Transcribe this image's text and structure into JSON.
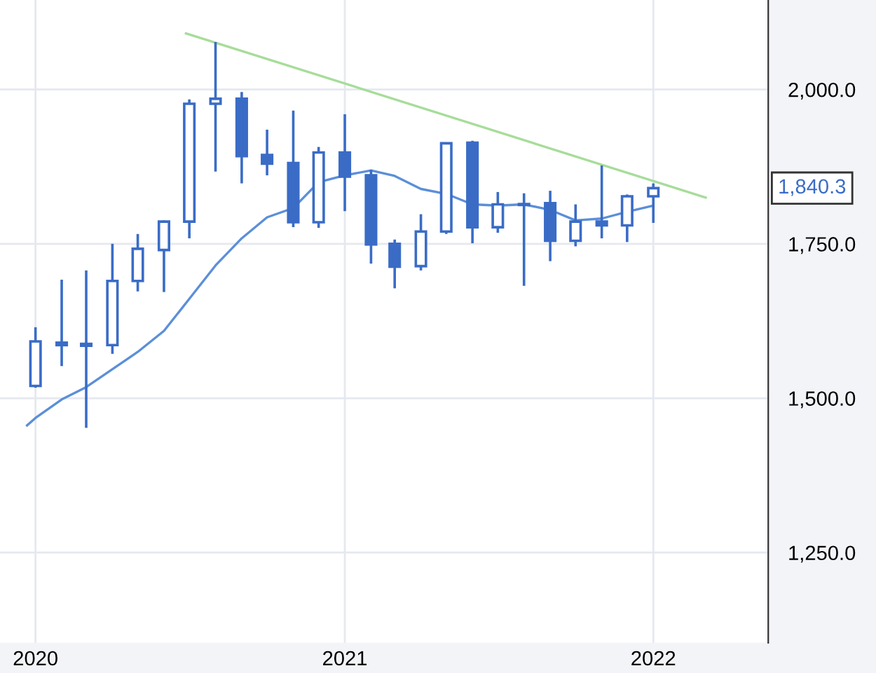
{
  "chart_data": {
    "type": "candlestick",
    "color": "#3a6cc6",
    "x": [
      "2020-01",
      "2020-02",
      "2020-03",
      "2020-04",
      "2020-05",
      "2020-06",
      "2020-07",
      "2020-08",
      "2020-09",
      "2020-10",
      "2020-11",
      "2020-12",
      "2021-01",
      "2021-02",
      "2021-03",
      "2021-04",
      "2021-05",
      "2021-06",
      "2021-07",
      "2021-08",
      "2021-09",
      "2021-10",
      "2021-11",
      "2021-12",
      "2022-01"
    ],
    "ohlc": [
      [
        1520,
        1615,
        1517,
        1592
      ],
      [
        1590,
        1692,
        1552,
        1586
      ],
      [
        1588,
        1707,
        1452,
        1585
      ],
      [
        1586,
        1750,
        1572,
        1690
      ],
      [
        1690,
        1766,
        1673,
        1742
      ],
      [
        1740,
        1788,
        1672,
        1786
      ],
      [
        1786,
        1984,
        1759,
        1977
      ],
      [
        1977,
        2077,
        1867,
        1985
      ],
      [
        1985,
        1996,
        1848,
        1892
      ],
      [
        1894,
        1935,
        1861,
        1880
      ],
      [
        1881,
        1966,
        1777,
        1785
      ],
      [
        1785,
        1907,
        1776,
        1898
      ],
      [
        1898,
        1960,
        1803,
        1859
      ],
      [
        1861,
        1870,
        1718,
        1749
      ],
      [
        1750,
        1757,
        1678,
        1713
      ],
      [
        1714,
        1798,
        1707,
        1770
      ],
      [
        1770,
        1914,
        1766,
        1913
      ],
      [
        1914,
        1917,
        1751,
        1777
      ],
      [
        1777,
        1834,
        1768,
        1814
      ],
      [
        1814,
        1832,
        1682,
        1813
      ],
      [
        1816,
        1836,
        1722,
        1755
      ],
      [
        1755,
        1814,
        1746,
        1786
      ],
      [
        1786,
        1877,
        1759,
        1780
      ],
      [
        1780,
        1830,
        1753,
        1827
      ],
      [
        1827,
        1848,
        1784,
        1840.3
      ]
    ],
    "series": [
      {
        "type": "line",
        "color": "#5b8fd9",
        "x": [
          "2019-12-22",
          "2020-01",
          "2020-02",
          "2020-03",
          "2020-04",
          "2020-05",
          "2020-06",
          "2020-07",
          "2020-08",
          "2020-09",
          "2020-10",
          "2020-11",
          "2020-12",
          "2021-01",
          "2021-02",
          "2021-03",
          "2021-04",
          "2021-05",
          "2021-06",
          "2021-07",
          "2021-08",
          "2021-09",
          "2021-10",
          "2021-11",
          "2021-12",
          "2022-01"
        ],
        "values": [
          1456,
          1468,
          1498,
          1518,
          1547,
          1575,
          1609,
          1661,
          1715,
          1759,
          1793,
          1808,
          1850,
          1861,
          1869,
          1860,
          1839,
          1831,
          1814,
          1812,
          1814,
          1805,
          1788,
          1791,
          1802,
          1812
        ]
      },
      {
        "type": "line",
        "color": "#a6dd99",
        "x": [
          "2020-06-27",
          "2022-03-04"
        ],
        "values": [
          2091,
          1825
        ]
      }
    ],
    "annotations": [
      "1,840.3"
    ],
    "xlim": [
      "2019-11-20",
      "2022-05-17"
    ],
    "ylim": [
      1104,
      2145
    ],
    "xticks": [
      {
        "value": "2020",
        "label": "2020"
      },
      {
        "value": "2021",
        "label": "2021"
      },
      {
        "value": "2022",
        "label": "2022"
      }
    ],
    "yticks": [
      {
        "value": 1250,
        "label": "1,250.0"
      },
      {
        "value": 1500,
        "label": "1,500.0"
      },
      {
        "value": 1750,
        "label": "1,750.0"
      },
      {
        "value": 2000,
        "label": "2,000.0"
      }
    ],
    "grid": true
  }
}
